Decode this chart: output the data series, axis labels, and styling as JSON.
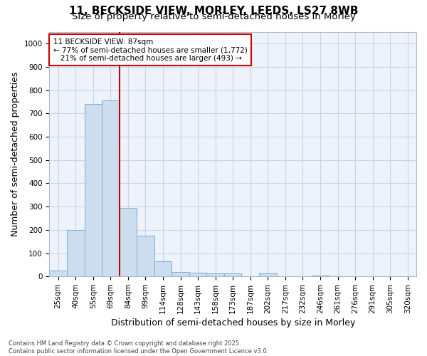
{
  "title_line1": "11, BECKSIDE VIEW, MORLEY, LEEDS, LS27 8WB",
  "title_line2": "Size of property relative to semi-detached houses in Morley",
  "xlabel": "Distribution of semi-detached houses by size in Morley",
  "ylabel": "Number of semi-detached properties",
  "categories": [
    "25sqm",
    "40sqm",
    "55sqm",
    "69sqm",
    "84sqm",
    "99sqm",
    "114sqm",
    "128sqm",
    "143sqm",
    "158sqm",
    "173sqm",
    "187sqm",
    "202sqm",
    "217sqm",
    "232sqm",
    "246sqm",
    "261sqm",
    "276sqm",
    "291sqm",
    "305sqm",
    "320sqm"
  ],
  "values": [
    25,
    200,
    740,
    755,
    295,
    175,
    65,
    20,
    15,
    12,
    12,
    0,
    12,
    0,
    0,
    3,
    0,
    0,
    0,
    0,
    0
  ],
  "bar_color": "#ccddf0",
  "bar_edge_color": "#7bafd4",
  "vline_x_index": 3.5,
  "vline_color": "#cc0000",
  "annotation_line1": "11 BECKSIDE VIEW: 87sqm",
  "annotation_line2": "← 77% of semi-detached houses are smaller (1,772)",
  "annotation_line3": "   21% of semi-detached houses are larger (493) →",
  "annotation_box_color": "#cc0000",
  "ylim": [
    0,
    1050
  ],
  "yticks": [
    0,
    100,
    200,
    300,
    400,
    500,
    600,
    700,
    800,
    900,
    1000
  ],
  "footer_line1": "Contains HM Land Registry data © Crown copyright and database right 2025.",
  "footer_line2": "Contains public sector information licensed under the Open Government Licence v3.0.",
  "bg_color": "#eef2fa",
  "grid_color": "#c8d4e8",
  "title_fontsize": 11,
  "subtitle_fontsize": 9.5,
  "axis_label_fontsize": 9,
  "tick_fontsize": 7.5,
  "annotation_fontsize": 7.5,
  "footer_fontsize": 6
}
